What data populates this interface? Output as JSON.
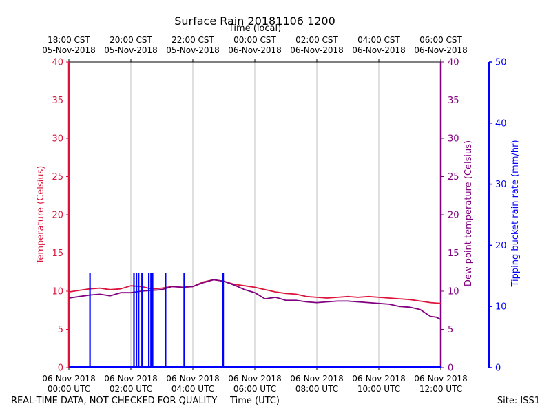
{
  "chart_data": {
    "type": "line",
    "title": "Surface Rain 20181106 1200",
    "xlabel_top": "Time (local)",
    "xlabel_bottom": "Time (UTC)",
    "footer_left": "REAL-TIME DATA, NOT CHECKED FOR QUALITY",
    "footer_right": "Site: ISS1",
    "xlim_hours": [
      0,
      12
    ],
    "x_ticks_hours": [
      0,
      2,
      4,
      6,
      8,
      10,
      12
    ],
    "x_tick_labels_bottom": [
      [
        "06-Nov-2018",
        "00:00 UTC"
      ],
      [
        "06-Nov-2018",
        "02:00 UTC"
      ],
      [
        "06-Nov-2018",
        "04:00 UTC"
      ],
      [
        "06-Nov-2018",
        "06:00 UTC"
      ],
      [
        "06-Nov-2018",
        "08:00 UTC"
      ],
      [
        "06-Nov-2018",
        "10:00 UTC"
      ],
      [
        "06-Nov-2018",
        "12:00 UTC"
      ]
    ],
    "x_tick_labels_top": [
      [
        "18:00 CST",
        "05-Nov-2018"
      ],
      [
        "20:00 CST",
        "05-Nov-2018"
      ],
      [
        "22:00 CST",
        "05-Nov-2018"
      ],
      [
        "00:00 CST",
        "06-Nov-2018"
      ],
      [
        "02:00 CST",
        "06-Nov-2018"
      ],
      [
        "04:00 CST",
        "06-Nov-2018"
      ],
      [
        "06:00 CST",
        "06-Nov-2018"
      ]
    ],
    "y_left": {
      "label": "Temperature (Celsius)",
      "lim": [
        0,
        40
      ],
      "ticks": [
        0,
        5,
        10,
        15,
        20,
        25,
        30,
        35,
        40
      ],
      "color": "#dc143c"
    },
    "y_right1": {
      "label": "Dew point temperature (Celsius)",
      "lim": [
        0,
        40
      ],
      "ticks": [
        0,
        5,
        10,
        15,
        20,
        25,
        30,
        35,
        40
      ],
      "color": "#800080"
    },
    "y_right2": {
      "label": "Tipping bucket rain rate (mm/hr)",
      "lim": [
        0,
        50
      ],
      "ticks": [
        0,
        10,
        20,
        30,
        40,
        50
      ],
      "color": "#0000ff"
    },
    "series": [
      {
        "name": "Temperature",
        "color": "#dc143c",
        "x": [
          0,
          0.33,
          0.67,
          1.0,
          1.33,
          1.67,
          2.0,
          2.33,
          2.67,
          3.0,
          3.33,
          3.67,
          4.0,
          4.33,
          4.67,
          5.0,
          5.33,
          5.67,
          6.0,
          6.33,
          6.67,
          7.0,
          7.33,
          7.67,
          8.0,
          8.33,
          8.67,
          9.0,
          9.33,
          9.67,
          10.0,
          10.33,
          10.67,
          11.0,
          11.33,
          11.67,
          12.0
        ],
        "values": [
          9.9,
          10.1,
          10.3,
          10.4,
          10.2,
          10.3,
          10.7,
          10.6,
          10.3,
          10.4,
          10.6,
          10.5,
          10.6,
          11.2,
          11.5,
          11.3,
          10.9,
          10.7,
          10.5,
          10.2,
          9.9,
          9.7,
          9.6,
          9.3,
          9.2,
          9.1,
          9.2,
          9.3,
          9.2,
          9.3,
          9.2,
          9.1,
          9.0,
          8.9,
          8.7,
          8.5,
          8.4
        ]
      },
      {
        "name": "Dew point",
        "color": "#800080",
        "x": [
          0,
          0.33,
          0.67,
          1.0,
          1.33,
          1.67,
          2.0,
          2.33,
          2.67,
          3.0,
          3.33,
          3.67,
          4.0,
          4.33,
          4.67,
          5.0,
          5.33,
          5.67,
          6.0,
          6.33,
          6.67,
          7.0,
          7.33,
          7.67,
          8.0,
          8.33,
          8.67,
          9.0,
          9.33,
          9.67,
          10.0,
          10.33,
          10.67,
          11.0,
          11.33,
          11.67,
          11.85,
          12.0
        ],
        "values": [
          9.1,
          9.3,
          9.5,
          9.6,
          9.4,
          9.8,
          9.8,
          10.0,
          10.1,
          10.2,
          10.6,
          10.5,
          10.6,
          11.1,
          11.5,
          11.3,
          10.8,
          10.2,
          9.8,
          9.0,
          9.2,
          8.8,
          8.8,
          8.6,
          8.5,
          8.6,
          8.7,
          8.7,
          8.6,
          8.5,
          8.4,
          8.3,
          8.0,
          7.9,
          7.6,
          6.7,
          6.6,
          6.3
        ]
      },
      {
        "name": "Rain rate",
        "color": "#0000ff",
        "type": "spikes",
        "x": [
          0.68,
          2.1,
          2.18,
          2.25,
          2.36,
          2.58,
          2.65,
          2.7,
          3.12,
          3.72,
          4.98
        ],
        "values": [
          15.5,
          15.5,
          15.5,
          15.5,
          15.5,
          15.5,
          15.5,
          15.5,
          15.5,
          15.5,
          15.5
        ]
      }
    ]
  }
}
